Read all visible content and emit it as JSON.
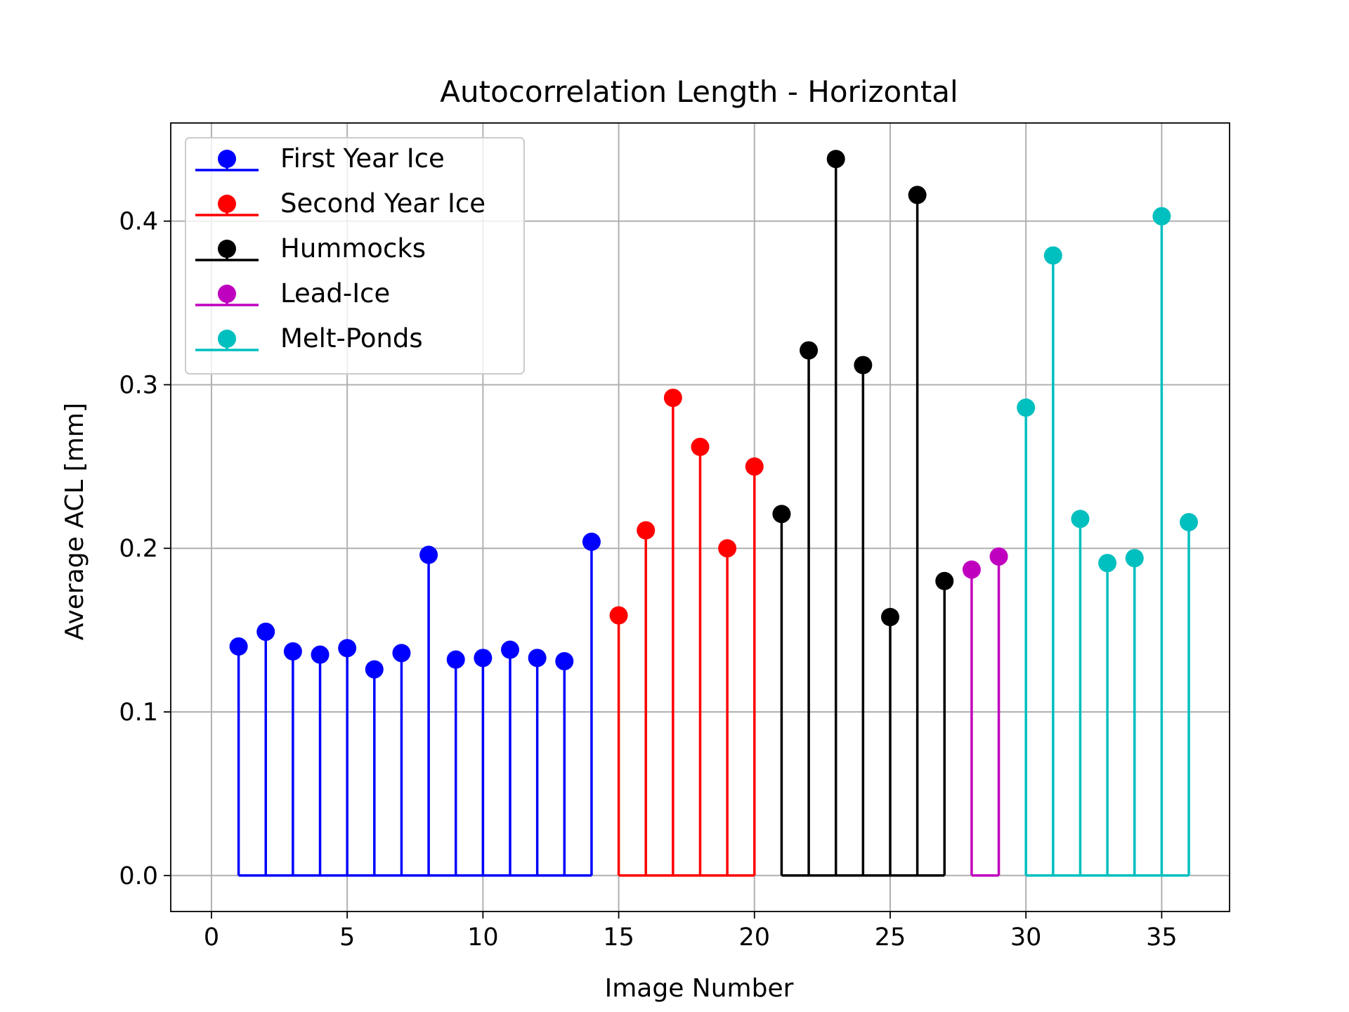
{
  "chart_data": {
    "type": "stem",
    "title": "Autocorrelation Length - Horizontal",
    "xlabel": "Image Number",
    "ylabel": "Average ACL [mm]",
    "xlim": [
      -1.5,
      37.5
    ],
    "ylim": [
      -0.022,
      0.46
    ],
    "x_ticks": [
      0,
      5,
      10,
      15,
      20,
      25,
      30,
      35
    ],
    "y_ticks": [
      0.0,
      0.1,
      0.2,
      0.3,
      0.4
    ],
    "x_tick_labels": [
      "0",
      "5",
      "10",
      "15",
      "20",
      "25",
      "30",
      "35"
    ],
    "y_tick_labels": [
      "0.0",
      "0.1",
      "0.2",
      "0.3",
      "0.4"
    ],
    "grid": true,
    "legend_position": "upper-left",
    "series": [
      {
        "name": "First Year Ice",
        "color": "#0000ff",
        "x": [
          1,
          2,
          3,
          4,
          5,
          6,
          7,
          8,
          9,
          10,
          11,
          12,
          13,
          14
        ],
        "values": [
          0.14,
          0.149,
          0.137,
          0.135,
          0.139,
          0.126,
          0.136,
          0.196,
          0.132,
          0.133,
          0.138,
          0.133,
          0.131,
          0.204
        ]
      },
      {
        "name": "Second Year Ice",
        "color": "#ff0000",
        "x": [
          15,
          16,
          17,
          18,
          19,
          20
        ],
        "values": [
          0.159,
          0.211,
          0.292,
          0.262,
          0.2,
          0.25
        ]
      },
      {
        "name": "Hummocks",
        "color": "#000000",
        "x": [
          21,
          22,
          23,
          24,
          25,
          26,
          27
        ],
        "values": [
          0.221,
          0.321,
          0.438,
          0.312,
          0.158,
          0.416,
          0.18
        ]
      },
      {
        "name": "Lead-Ice",
        "color": "#bf00bf",
        "x": [
          28,
          29
        ],
        "values": [
          0.187,
          0.195
        ]
      },
      {
        "name": "Melt-Ponds",
        "color": "#00bfbf",
        "x": [
          30,
          31,
          32,
          33,
          34,
          35,
          36
        ],
        "values": [
          0.286,
          0.379,
          0.218,
          0.191,
          0.194,
          0.403,
          0.216
        ]
      }
    ]
  }
}
